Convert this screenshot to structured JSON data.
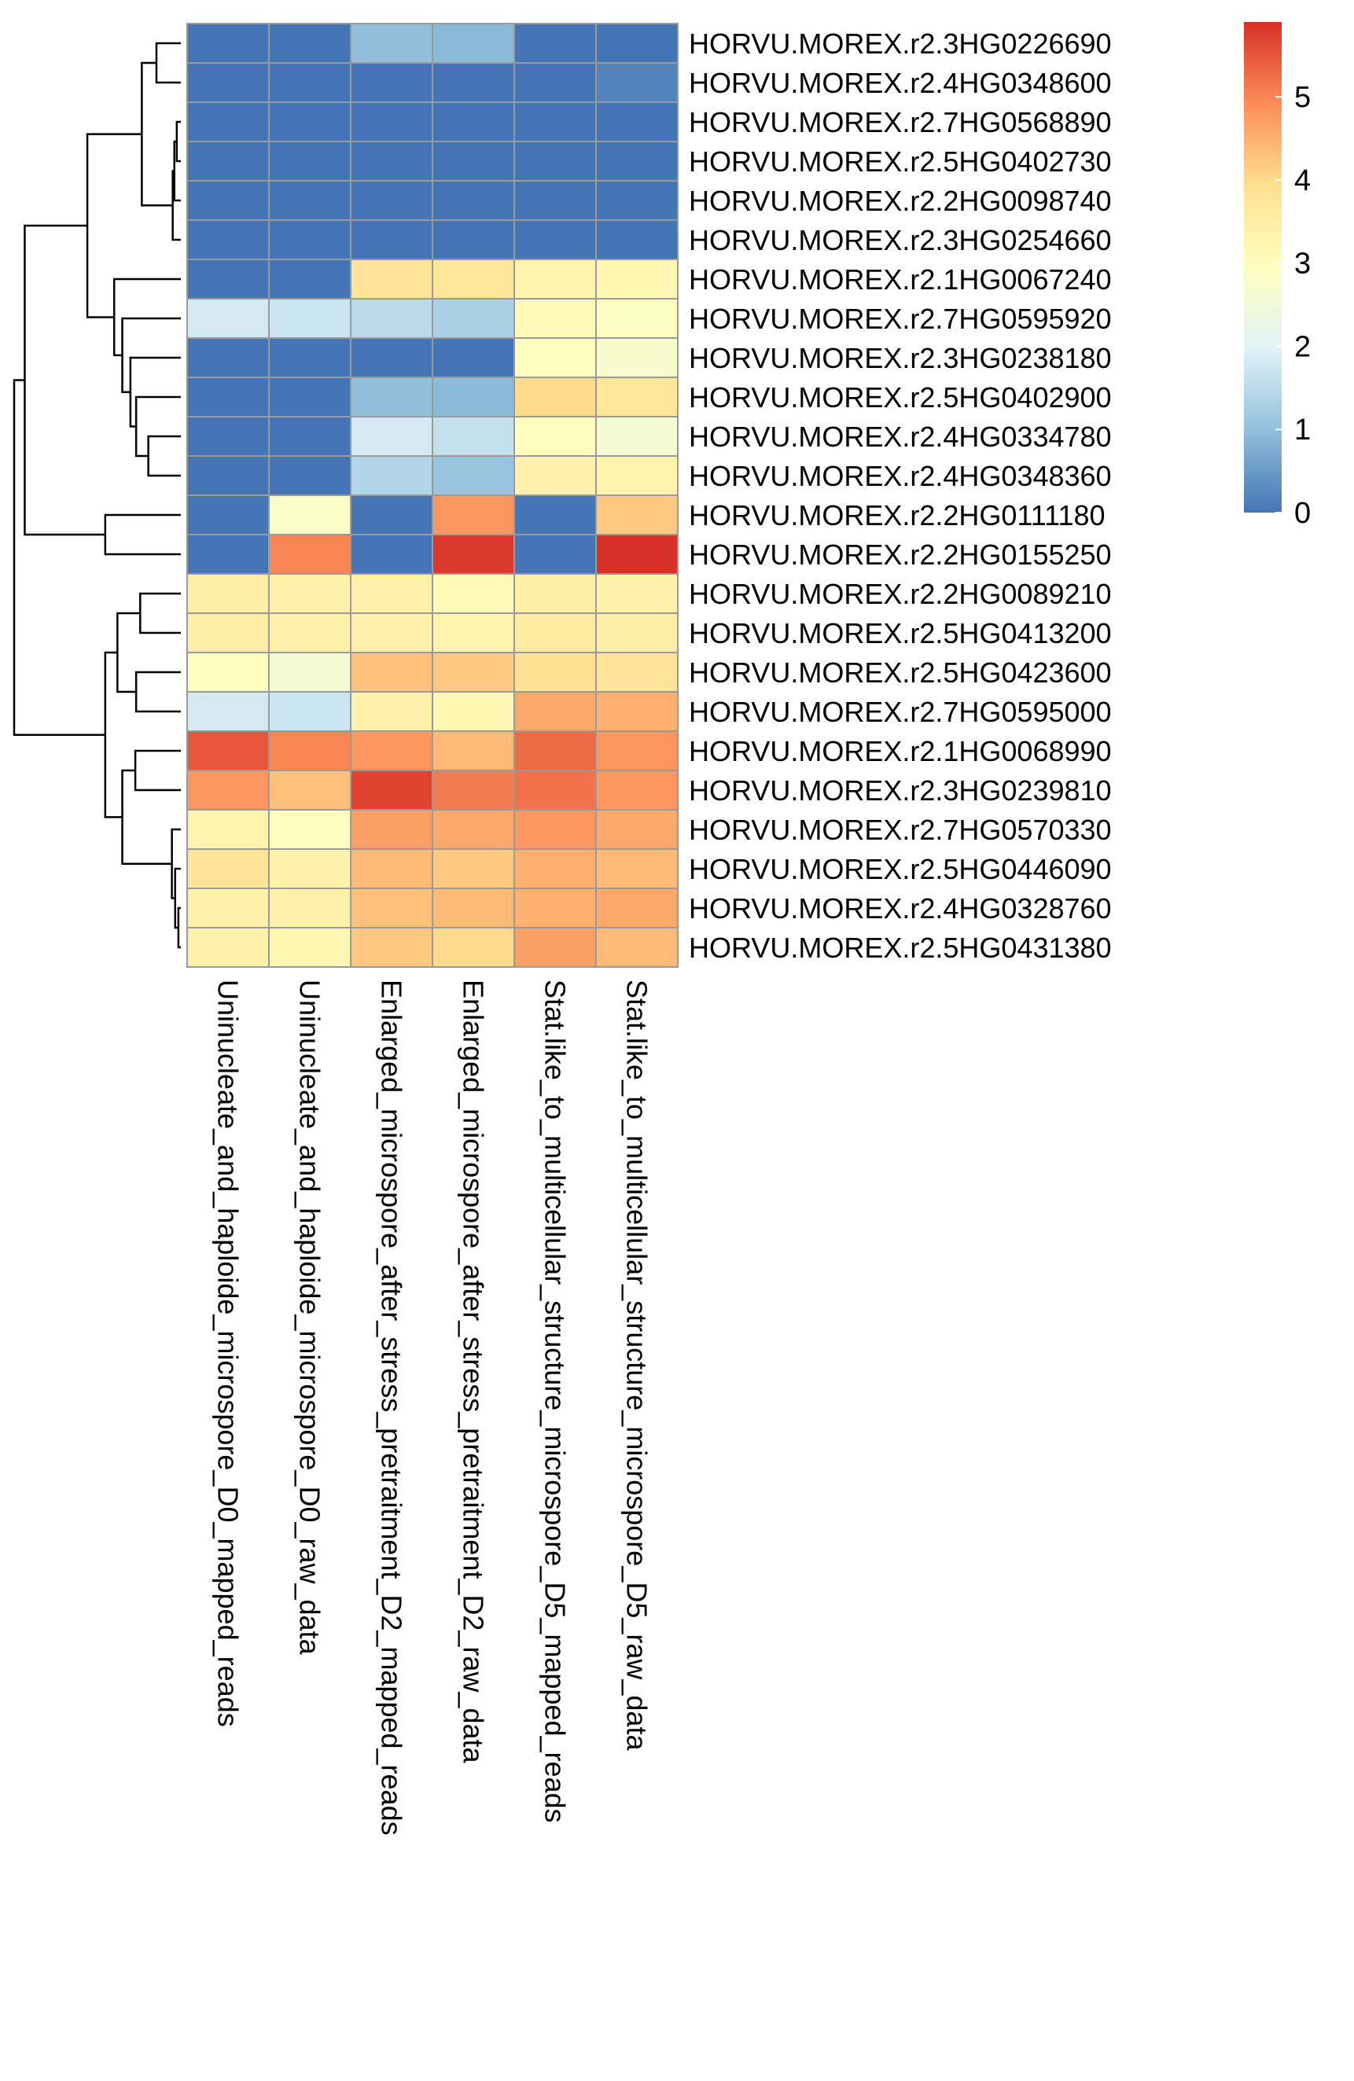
{
  "chart_data": {
    "type": "heatmap",
    "rows": [
      "HORVU.MOREX.r2.3HG0226690",
      "HORVU.MOREX.r2.4HG0348600",
      "HORVU.MOREX.r2.7HG0568890",
      "HORVU.MOREX.r2.5HG0402730",
      "HORVU.MOREX.r2.2HG0098740",
      "HORVU.MOREX.r2.3HG0254660",
      "HORVU.MOREX.r2.1HG0067240",
      "HORVU.MOREX.r2.7HG0595920",
      "HORVU.MOREX.r2.3HG0238180",
      "HORVU.MOREX.r2.5HG0402900",
      "HORVU.MOREX.r2.4HG0334780",
      "HORVU.MOREX.r2.4HG0348360",
      "HORVU.MOREX.r2.2HG0111180",
      "HORVU.MOREX.r2.2HG0155250",
      "HORVU.MOREX.r2.2HG0089210",
      "HORVU.MOREX.r2.5HG0413200",
      "HORVU.MOREX.r2.5HG0423600",
      "HORVU.MOREX.r2.7HG0595000",
      "HORVU.MOREX.r2.1HG0068990",
      "HORVU.MOREX.r2.3HG0239810",
      "HORVU.MOREX.r2.7HG0570330",
      "HORVU.MOREX.r2.5HG0446090",
      "HORVU.MOREX.r2.4HG0328760",
      "HORVU.MOREX.r2.5HG0431380"
    ],
    "columns": [
      "Uninucleate_and_haploide_microspore_D0_mapped_reads",
      "Uninucleate_and_haploide_microspore_D0_raw_data",
      "Enlarged_microspore_after_stress_pretraitment_D2_mapped_reads",
      "Enlarged_microspore_after_stress_pretraitment_D2_raw_data",
      "Stat.like_to_multicellular_structure_microspore_D5_mapped_reads",
      "Stat.like_to_multicellular_structure_microspore_D5_raw_data"
    ],
    "values": [
      [
        0.0,
        0.0,
        1.0,
        0.9,
        0.0,
        0.0
      ],
      [
        0.0,
        0.0,
        0.0,
        0.0,
        0.0,
        0.2
      ],
      [
        0.0,
        0.0,
        0.0,
        0.0,
        0.0,
        0.0
      ],
      [
        0.0,
        0.0,
        0.0,
        0.0,
        0.0,
        0.0
      ],
      [
        0.0,
        0.0,
        0.0,
        0.0,
        0.0,
        0.0
      ],
      [
        0.0,
        0.0,
        0.0,
        0.0,
        0.0,
        0.0
      ],
      [
        0.0,
        0.0,
        3.8,
        3.7,
        3.3,
        3.2
      ],
      [
        1.8,
        1.7,
        1.5,
        1.3,
        3.1,
        2.9
      ],
      [
        0.0,
        0.0,
        0.0,
        0.0,
        3.0,
        2.7
      ],
      [
        0.0,
        0.0,
        1.0,
        0.9,
        4.0,
        3.7
      ],
      [
        0.0,
        0.0,
        1.8,
        1.6,
        3.0,
        2.6
      ],
      [
        0.0,
        0.0,
        1.4,
        1.1,
        3.4,
        3.3
      ],
      [
        0.0,
        2.8,
        0.0,
        4.8,
        0.0,
        4.2
      ],
      [
        0.0,
        5.0,
        0.0,
        5.8,
        0.0,
        5.9
      ],
      [
        3.5,
        3.4,
        3.4,
        3.1,
        3.5,
        3.4
      ],
      [
        3.5,
        3.4,
        3.4,
        3.3,
        3.6,
        3.5
      ],
      [
        3.0,
        2.6,
        4.3,
        4.2,
        3.9,
        3.8
      ],
      [
        1.8,
        1.7,
        3.4,
        3.2,
        4.6,
        4.5
      ],
      [
        5.5,
        5.0,
        4.8,
        4.4,
        5.3,
        4.8
      ],
      [
        4.8,
        4.3,
        5.7,
        5.1,
        5.2,
        4.8
      ],
      [
        3.3,
        3.0,
        4.7,
        4.6,
        4.8,
        4.6
      ],
      [
        3.8,
        3.4,
        4.4,
        4.2,
        4.5,
        4.4
      ],
      [
        3.4,
        3.4,
        4.3,
        4.4,
        4.5,
        4.6
      ],
      [
        3.4,
        3.2,
        4.2,
        4.0,
        4.7,
        4.4
      ]
    ],
    "scale": {
      "min": 0,
      "max": 5.9,
      "colors": [
        "#4575b4",
        "#91bfdb",
        "#e0f3f8",
        "#ffffbf",
        "#fee090",
        "#fc8d59",
        "#d73027"
      ],
      "ticks": [
        0,
        1,
        2,
        3,
        4,
        5
      ]
    },
    "row_dendrogram": true,
    "legend": "right"
  }
}
